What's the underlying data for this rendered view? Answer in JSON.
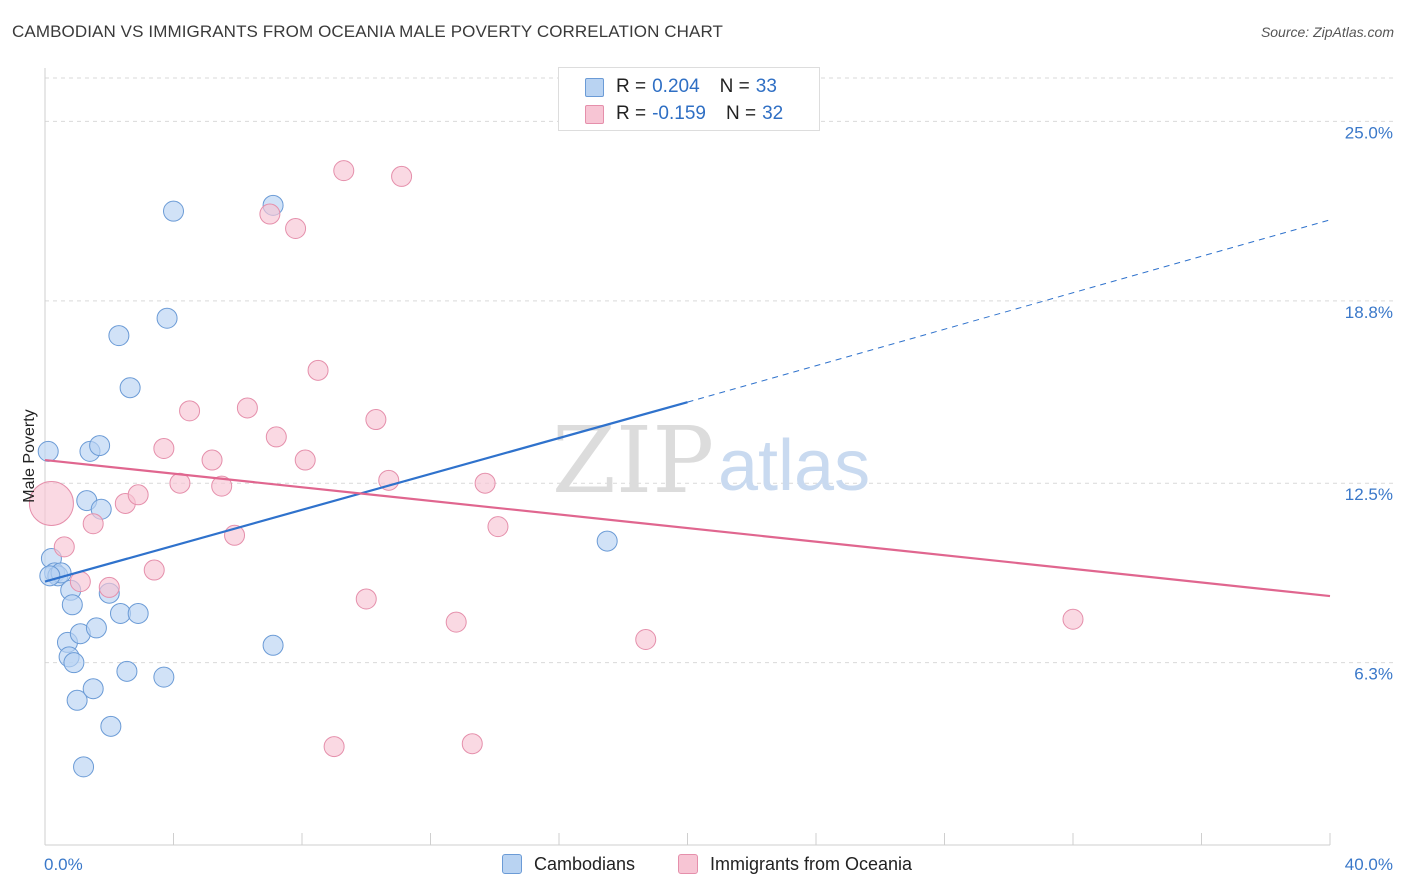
{
  "title": "CAMBODIAN VS IMMIGRANTS FROM OCEANIA MALE POVERTY CORRELATION CHART",
  "source": "Source: ZipAtlas.com",
  "watermark": {
    "zip": "ZIP",
    "atlas": "atlas"
  },
  "legend_stats": [
    {
      "r_label": "R = ",
      "r_value": "0.204",
      "n_label": "N = ",
      "n_value": "33"
    },
    {
      "r_label": "R = ",
      "r_value": "-0.159",
      "n_label": "N = ",
      "n_value": "32"
    }
  ],
  "colors": {
    "blue_fill": "#b9d3f2",
    "blue_stroke": "#6b9bd6",
    "blue_line": "#2f72cc",
    "pink_fill": "#f7c5d4",
    "pink_stroke": "#e58fab",
    "pink_line": "#e0668f",
    "grid": "#d9d9d9",
    "tick_label": "#3a78c9"
  },
  "chart_data": {
    "type": "scatter",
    "title": "CAMBODIAN VS IMMIGRANTS FROM OCEANIA MALE POVERTY CORRELATION CHART",
    "xlabel": "",
    "ylabel": "Male Poverty",
    "xlim": [
      0,
      40
    ],
    "ylim": [
      0,
      26.5
    ],
    "x_tick_labels": [
      "0.0%",
      "40.0%"
    ],
    "y_ticks": [
      6.3,
      12.5,
      18.8,
      25.0
    ],
    "y_tick_labels": [
      "6.3%",
      "12.5%",
      "18.8%",
      "25.0%"
    ],
    "series": [
      {
        "name": "Cambodians",
        "color": "blue",
        "points": [
          [
            0.1,
            13.6,
            10
          ],
          [
            0.2,
            9.9,
            10
          ],
          [
            0.3,
            9.4,
            10
          ],
          [
            0.4,
            9.3,
            10
          ],
          [
            0.5,
            9.4,
            10
          ],
          [
            0.7,
            7.0,
            10
          ],
          [
            0.75,
            6.5,
            10
          ],
          [
            0.8,
            8.8,
            10
          ],
          [
            0.85,
            8.3,
            10
          ],
          [
            0.9,
            6.3,
            10
          ],
          [
            1.0,
            5.0,
            10
          ],
          [
            1.1,
            7.3,
            10
          ],
          [
            1.2,
            2.7,
            10
          ],
          [
            1.3,
            11.9,
            10
          ],
          [
            1.4,
            13.6,
            10
          ],
          [
            1.5,
            5.4,
            10
          ],
          [
            1.6,
            7.5,
            10
          ],
          [
            1.7,
            13.8,
            10
          ],
          [
            1.75,
            11.6,
            10
          ],
          [
            2.0,
            8.7,
            10
          ],
          [
            2.05,
            4.1,
            10
          ],
          [
            2.3,
            17.6,
            10
          ],
          [
            2.35,
            8.0,
            10
          ],
          [
            2.55,
            6.0,
            10
          ],
          [
            2.65,
            15.8,
            10
          ],
          [
            2.9,
            8.0,
            10
          ],
          [
            3.7,
            5.8,
            10
          ],
          [
            3.8,
            18.2,
            10
          ],
          [
            4.0,
            21.9,
            10
          ],
          [
            7.1,
            22.1,
            10
          ],
          [
            7.1,
            6.9,
            10
          ],
          [
            17.5,
            10.5,
            10
          ],
          [
            0.15,
            9.3,
            10
          ]
        ]
      },
      {
        "name": "Immigrants from Oceania",
        "color": "pink",
        "points": [
          [
            0.2,
            11.8,
            22
          ],
          [
            0.6,
            10.3,
            10
          ],
          [
            1.1,
            9.1,
            10
          ],
          [
            1.5,
            11.1,
            10
          ],
          [
            2.0,
            8.9,
            10
          ],
          [
            2.5,
            11.8,
            10
          ],
          [
            2.9,
            12.1,
            10
          ],
          [
            3.4,
            9.5,
            10
          ],
          [
            3.7,
            13.7,
            10
          ],
          [
            4.2,
            12.5,
            10
          ],
          [
            4.5,
            15.0,
            10
          ],
          [
            5.2,
            13.3,
            10
          ],
          [
            5.5,
            12.4,
            10
          ],
          [
            5.9,
            10.7,
            10
          ],
          [
            6.3,
            15.1,
            10
          ],
          [
            7.0,
            21.8,
            10
          ],
          [
            7.2,
            14.1,
            10
          ],
          [
            7.8,
            21.3,
            10
          ],
          [
            8.1,
            13.3,
            10
          ],
          [
            8.5,
            16.4,
            10
          ],
          [
            9.0,
            3.4,
            10
          ],
          [
            9.3,
            23.3,
            10
          ],
          [
            10.0,
            8.5,
            10
          ],
          [
            10.3,
            14.7,
            10
          ],
          [
            10.7,
            12.6,
            10
          ],
          [
            11.1,
            23.1,
            10
          ],
          [
            12.8,
            7.7,
            10
          ],
          [
            13.3,
            3.5,
            10
          ],
          [
            13.7,
            12.5,
            10
          ],
          [
            14.1,
            11.0,
            10
          ],
          [
            18.7,
            7.1,
            10
          ],
          [
            32.0,
            7.8,
            10
          ]
        ]
      }
    ],
    "trend_lines": [
      {
        "series": "Cambodians",
        "x0": 0,
        "y0": 9.1,
        "x1": 20,
        "y1": 15.3,
        "dashed_to_x": 40,
        "dashed_to_y": 21.6
      },
      {
        "series": "Immigrants from Oceania",
        "x0": 0,
        "y0": 13.3,
        "x1": 40,
        "y1": 8.6
      }
    ],
    "legend": [
      "Cambodians",
      "Immigrants from Oceania"
    ],
    "legend_position": "bottom",
    "grid": true
  }
}
